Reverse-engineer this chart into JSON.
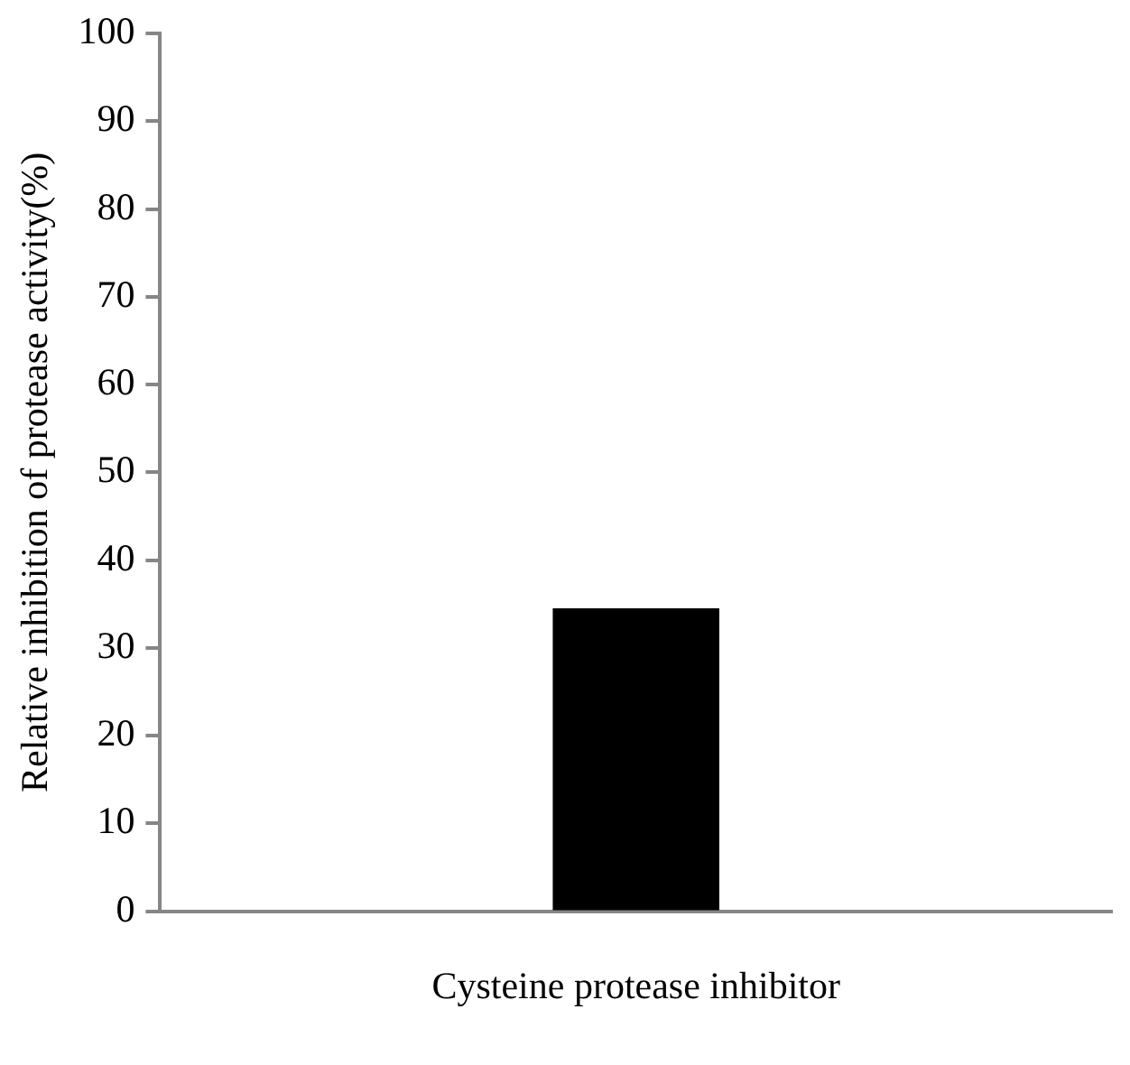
{
  "chart_data": {
    "type": "bar",
    "ylabel": "Relative inhibition of protease activity(%)",
    "categories": [
      "Cysteine protease inhibitor"
    ],
    "values": [
      34.5
    ],
    "color": "#000000",
    "ylim": [
      0,
      100
    ],
    "yticks": [
      0,
      10,
      20,
      30,
      40,
      50,
      60,
      70,
      80,
      90,
      100
    ],
    "grid": false,
    "legend": false
  }
}
